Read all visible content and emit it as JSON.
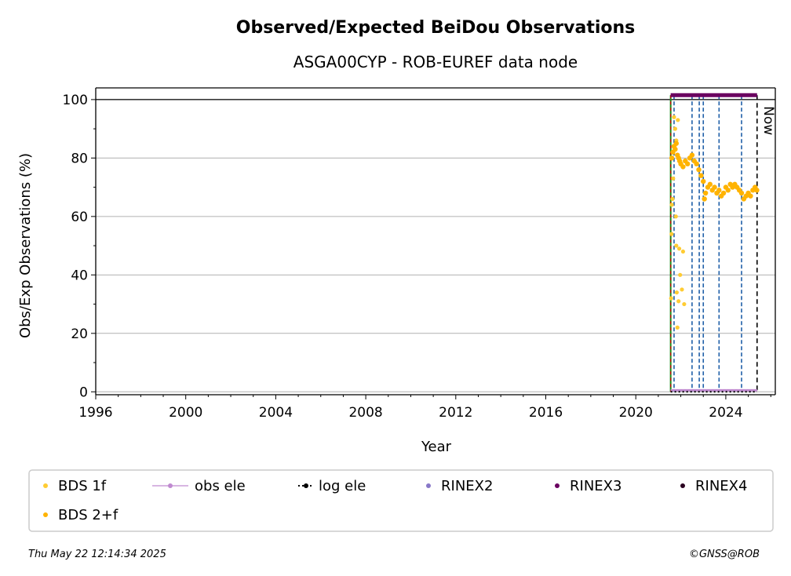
{
  "chart_data": {
    "type": "scatter",
    "title": "Observed/Expected BeiDou Observations",
    "subtitle": "ASGA00CYP - ROB-EUREF data node",
    "xlabel": "Year",
    "ylabel": "Obs/Exp Observations (%)",
    "xlim": [
      1996,
      2026.2
    ],
    "ylim": [
      -1,
      104
    ],
    "xticks": [
      "1996",
      "2000",
      "2004",
      "2008",
      "2012",
      "2016",
      "2020",
      "2024"
    ],
    "yticks": [
      "0",
      "20",
      "40",
      "60",
      "80",
      "100"
    ],
    "grid": "horizontal",
    "now_label": "Now",
    "now_x": 2025.39,
    "start_x": 2021.55,
    "log_change_x": [
      2021.7,
      2022.5,
      2022.82,
      2023.0,
      2023.7,
      2024.7
    ],
    "series": [
      {
        "name": "BDS 1f",
        "color": "#ffcc33",
        "points": [
          [
            2021.57,
            32
          ],
          [
            2021.59,
            54
          ],
          [
            2021.6,
            64
          ],
          [
            2021.63,
            66
          ],
          [
            2021.66,
            73
          ],
          [
            2021.7,
            94
          ],
          [
            2021.72,
            84
          ],
          [
            2021.75,
            90
          ],
          [
            2021.78,
            60
          ],
          [
            2021.8,
            86
          ],
          [
            2021.82,
            34
          ],
          [
            2021.85,
            22
          ],
          [
            2021.87,
            93
          ],
          [
            2021.9,
            31
          ],
          [
            2021.93,
            49
          ],
          [
            2021.97,
            40
          ],
          [
            2022.05,
            35
          ],
          [
            2022.1,
            48
          ],
          [
            2022.15,
            30
          ],
          [
            2021.8,
            50
          ]
        ]
      },
      {
        "name": "BDS 2+f",
        "color": "#ffb300",
        "points": [
          [
            2021.6,
            80
          ],
          [
            2021.65,
            82
          ],
          [
            2021.7,
            84
          ],
          [
            2021.75,
            83
          ],
          [
            2021.8,
            85
          ],
          [
            2021.85,
            81
          ],
          [
            2021.9,
            80
          ],
          [
            2021.95,
            79
          ],
          [
            2022.0,
            78
          ],
          [
            2022.1,
            77
          ],
          [
            2022.2,
            79
          ],
          [
            2022.3,
            78
          ],
          [
            2022.4,
            80
          ],
          [
            2022.5,
            81
          ],
          [
            2022.6,
            79
          ],
          [
            2022.7,
            78
          ],
          [
            2022.8,
            76
          ],
          [
            2022.9,
            74
          ],
          [
            2023.0,
            72
          ],
          [
            2023.05,
            66
          ],
          [
            2023.1,
            68
          ],
          [
            2023.2,
            70
          ],
          [
            2023.3,
            71
          ],
          [
            2023.4,
            69
          ],
          [
            2023.5,
            70
          ],
          [
            2023.6,
            68
          ],
          [
            2023.7,
            69
          ],
          [
            2023.8,
            67
          ],
          [
            2023.9,
            68
          ],
          [
            2024.0,
            70
          ],
          [
            2024.1,
            69
          ],
          [
            2024.2,
            71
          ],
          [
            2024.3,
            70
          ],
          [
            2024.4,
            71
          ],
          [
            2024.5,
            70
          ],
          [
            2024.6,
            69
          ],
          [
            2024.7,
            68
          ],
          [
            2024.8,
            66
          ],
          [
            2024.9,
            67
          ],
          [
            2025.0,
            68
          ],
          [
            2025.1,
            67
          ],
          [
            2025.2,
            69
          ],
          [
            2025.3,
            70
          ],
          [
            2025.38,
            69
          ]
        ]
      }
    ],
    "rinex3_y": 101.5,
    "rinex3_range": [
      2021.55,
      2025.39
    ],
    "obs_ele_y": 0.5,
    "legend": {
      "placement": "bottom",
      "items": [
        {
          "label": "BDS 1f",
          "color": "#ffcc33",
          "style": "dot"
        },
        {
          "label": "obs ele",
          "color": "#c08ad0",
          "style": "line-dot"
        },
        {
          "label": "log ele",
          "color": "#000000",
          "style": "dotted-dot"
        },
        {
          "label": "RINEX2",
          "color": "#8878c8",
          "style": "dot"
        },
        {
          "label": "RINEX3",
          "color": "#6a0060",
          "style": "dot"
        },
        {
          "label": "RINEX4",
          "color": "#2a0020",
          "style": "dot"
        },
        {
          "label": "BDS 2+f",
          "color": "#ffb300",
          "style": "dot"
        }
      ]
    }
  },
  "footer": {
    "timestamp": "Thu May 22 12:14:34 2025",
    "credit": "©GNSS@ROB"
  }
}
